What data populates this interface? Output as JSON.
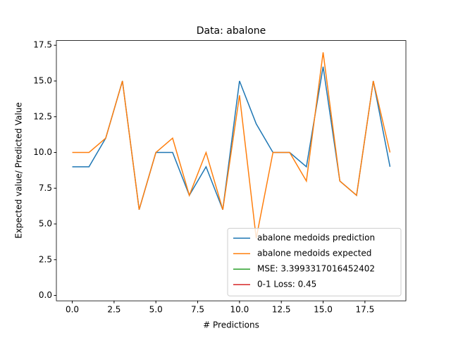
{
  "chart_data": {
    "type": "line",
    "title": "Data: abalone",
    "x_label": "# Predictions",
    "y_label": "Expected value/ Predicted Value",
    "x": [
      0,
      1,
      2,
      3,
      4,
      5,
      6,
      7,
      8,
      9,
      10,
      11,
      12,
      13,
      14,
      15,
      16,
      17,
      18,
      19
    ],
    "series": [
      {
        "name": "abalone medoids prediction",
        "color": "#1f77b4",
        "values": [
          9,
          9,
          11,
          15,
          6,
          10,
          10,
          7,
          9,
          6,
          15,
          12,
          10,
          10,
          9,
          16,
          8,
          7,
          15,
          9
        ]
      },
      {
        "name": "abalone medoids expected",
        "color": "#ff7f0e",
        "values": [
          10,
          10,
          11,
          15,
          6,
          10,
          11,
          7,
          10,
          6,
          14,
          4,
          10,
          10,
          8,
          17,
          8,
          7,
          15,
          10
        ]
      }
    ],
    "legend_extra": [
      {
        "name": "MSE: 3.3993317016452402",
        "color": "#2ca02c"
      },
      {
        "name": "0-1 Loss: 0.45",
        "color": "#d62728"
      }
    ],
    "legend": "lower right",
    "xlim": [
      -0.95,
      19.95
    ],
    "xticks": [
      {
        "value": 0,
        "label": "0.0"
      },
      2.5,
      {
        "value": 5,
        "label": "5.0"
      },
      7.5,
      {
        "value": 10,
        "label": "10.0"
      },
      12.5,
      {
        "value": 15,
        "label": "15.0"
      },
      17.5
    ],
    "ylim": [
      -0.3775,
      17.8275
    ],
    "yticks": [
      {
        "value": 0,
        "label": "0.0"
      },
      2.5,
      {
        "value": 5,
        "label": "5.0"
      },
      7.5,
      {
        "value": 10,
        "label": "10.0"
      },
      12.5,
      {
        "value": 15,
        "label": "15.0"
      },
      17.5
    ]
  }
}
